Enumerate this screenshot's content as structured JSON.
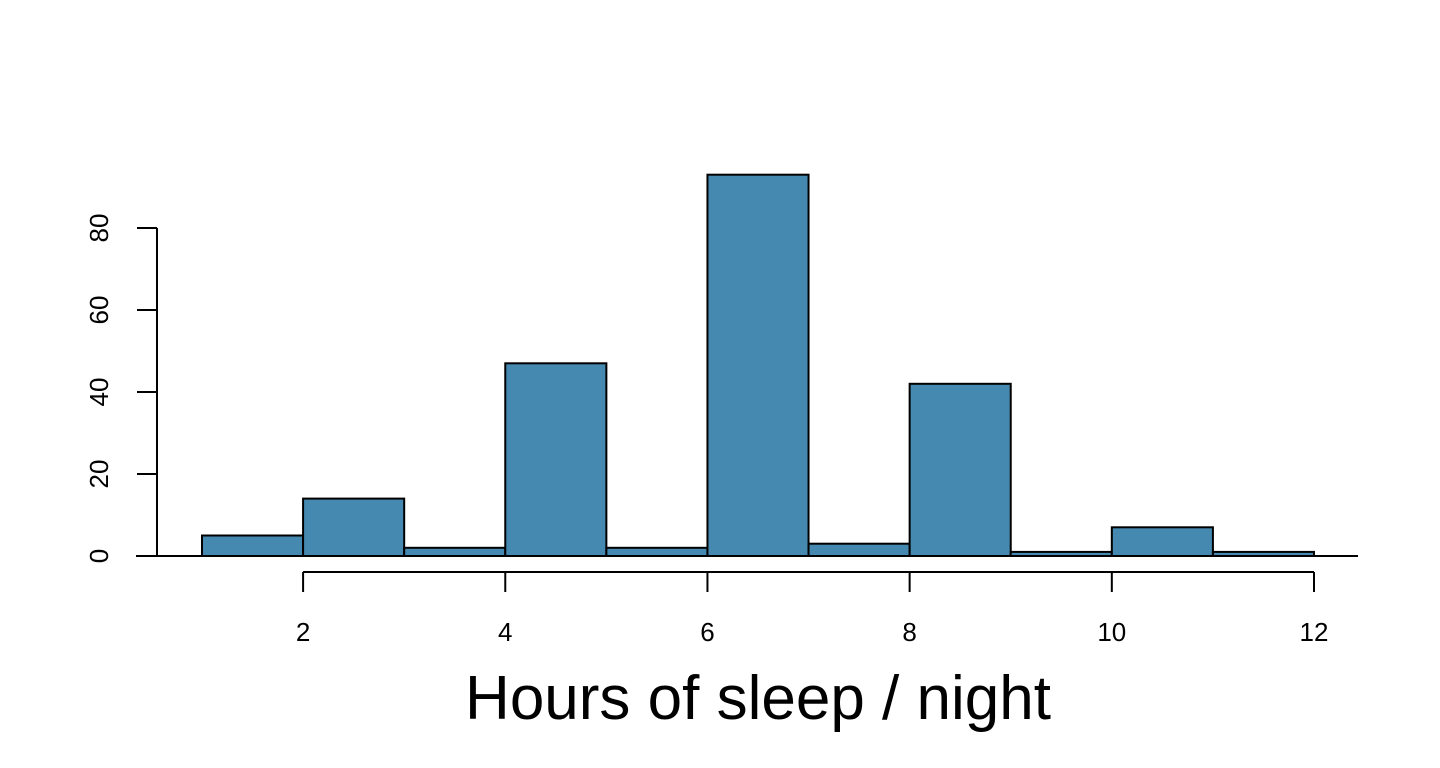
{
  "chart_data": {
    "type": "bar",
    "xlabel": "Hours of sleep / night",
    "ylabel": "",
    "bins": [
      {
        "x0": 1,
        "x1": 2,
        "count": 5
      },
      {
        "x0": 2,
        "x1": 3,
        "count": 14
      },
      {
        "x0": 3,
        "x1": 4,
        "count": 2
      },
      {
        "x0": 4,
        "x1": 5,
        "count": 47
      },
      {
        "x0": 5,
        "x1": 6,
        "count": 2
      },
      {
        "x0": 6,
        "x1": 7,
        "count": 93
      },
      {
        "x0": 7,
        "x1": 8,
        "count": 3
      },
      {
        "x0": 8,
        "x1": 9,
        "count": 42
      },
      {
        "x0": 9,
        "x1": 10,
        "count": 1
      },
      {
        "x0": 10,
        "x1": 11,
        "count": 7
      },
      {
        "x0": 11,
        "x1": 12,
        "count": 1
      }
    ],
    "xticks": [
      2,
      4,
      6,
      8,
      10,
      12
    ],
    "yticks": [
      0,
      20,
      40,
      60,
      80
    ],
    "xlim": [
      0.5,
      12.5
    ],
    "ylim": [
      0,
      93
    ],
    "grid": false,
    "bar_color": "#4589B0"
  }
}
